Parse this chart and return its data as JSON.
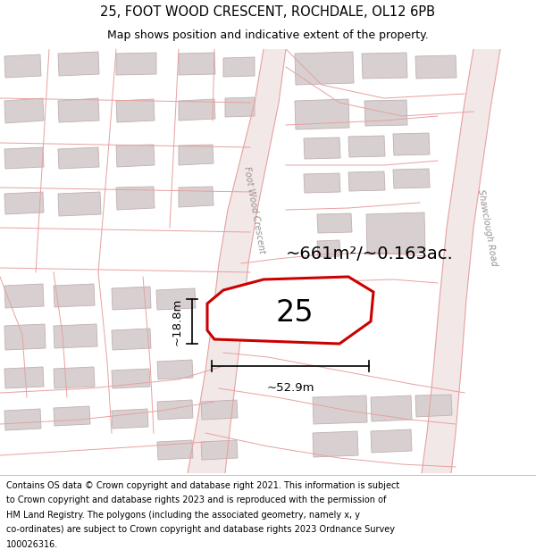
{
  "title": "25, FOOT WOOD CRESCENT, ROCHDALE, OL12 6PB",
  "subtitle": "Map shows position and indicative extent of the property.",
  "area_label": "~661m²/~0.163ac.",
  "width_label": "~52.9m",
  "height_label": "~18.8m",
  "number_label": "25",
  "road_label_left": "Foot Wood Crescent",
  "road_label_right": "Shawclough Road",
  "map_bg": "#f8f6f6",
  "block_color": "#d8d0d0",
  "block_border": "#c0b0b0",
  "road_line_color": "#e8a0a0",
  "road_fill_color": "#f0d0d0",
  "road_center_color": "#e8d8d8",
  "highlight_color": "#cc0000",
  "highlight_fill": "#ffffff",
  "title_fontsize": 10.5,
  "subtitle_fontsize": 9,
  "footer_fontsize": 7.0,
  "area_fontsize": 14,
  "number_fontsize": 24,
  "measure_fontsize": 9.5,
  "road_label_fontsize": 7,
  "footer_lines": [
    "Contains OS data © Crown copyright and database right 2021. This information is subject",
    "to Crown copyright and database rights 2023 and is reproduced with the permission of",
    "HM Land Registry. The polygons (including the associated geometry, namely x, y",
    "co-ordinates) are subject to Crown copyright and database rights 2023 Ordnance Survey",
    "100026316."
  ]
}
